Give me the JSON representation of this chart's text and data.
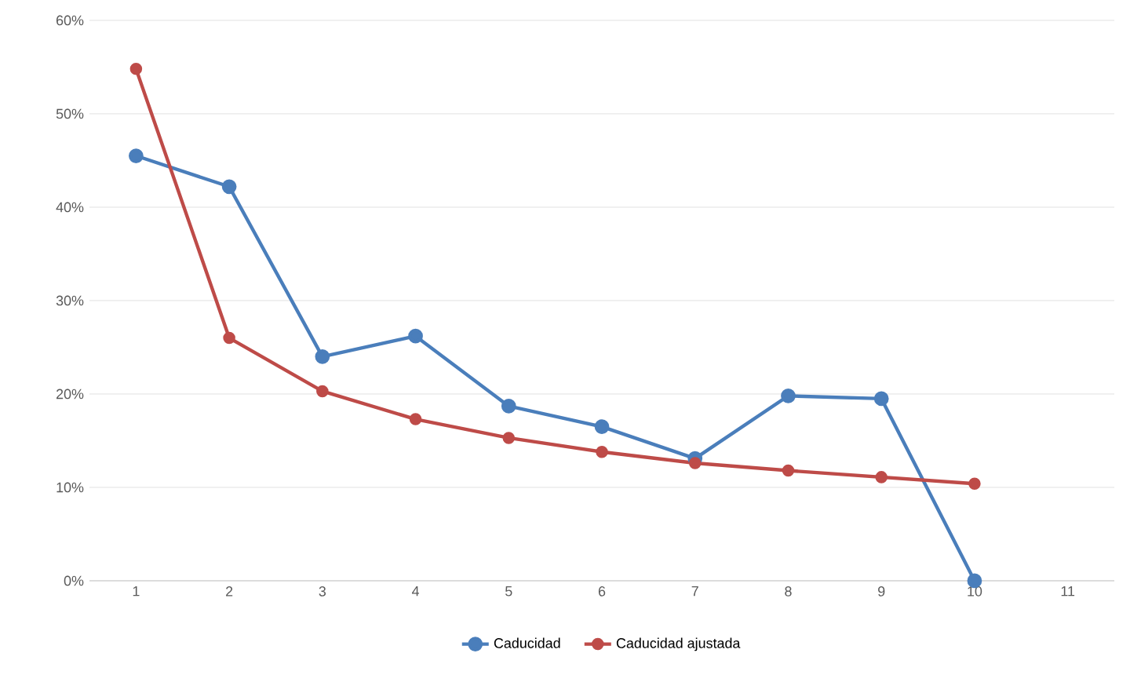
{
  "chart_data": {
    "type": "line",
    "categories": [
      "1",
      "2",
      "3",
      "4",
      "5",
      "6",
      "7",
      "8",
      "9",
      "10",
      "11"
    ],
    "series": [
      {
        "name": "Caducidad",
        "color": "#4a7ebb",
        "values": [
          45.5,
          42.2,
          24.0,
          26.2,
          18.7,
          16.5,
          13.1,
          19.8,
          19.5,
          0,
          null
        ]
      },
      {
        "name": "Caducidad ajustada",
        "color": "#be4b48",
        "values": [
          54.8,
          26.0,
          20.3,
          17.3,
          15.3,
          13.8,
          12.6,
          11.8,
          11.1,
          10.4,
          null
        ]
      }
    ],
    "ylim": [
      0,
      60
    ],
    "yticks": [
      {
        "value": 0,
        "label": "0%"
      },
      {
        "value": 10,
        "label": "10%"
      },
      {
        "value": 20,
        "label": "20%"
      },
      {
        "value": 30,
        "label": "30%"
      },
      {
        "value": 40,
        "label": "40%"
      },
      {
        "value": 50,
        "label": "50%"
      },
      {
        "value": 60,
        "label": "60%"
      }
    ],
    "grid": "y",
    "legend": "bottom",
    "marker": "circle"
  }
}
